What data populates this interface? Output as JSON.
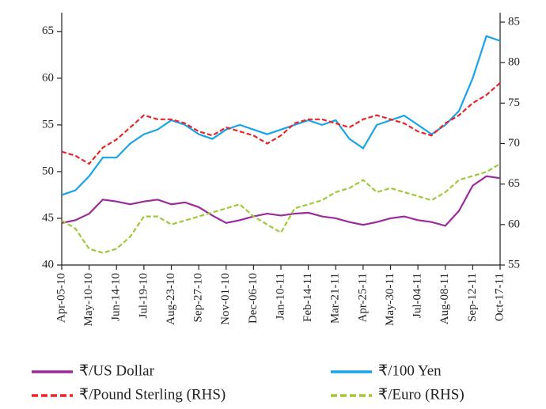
{
  "chart_data": {
    "type": "line",
    "categories": [
      "Apr-05-10",
      null,
      "May-10-10",
      null,
      "Jun-14-10",
      null,
      "Jul-19-10",
      null,
      "Aug-23-10",
      null,
      "Sep-27-10",
      null,
      "Nov-01-10",
      null,
      "Dec-06-10",
      null,
      "Jan-10-11",
      null,
      "Feb-14-11",
      null,
      "Mar-21-11",
      null,
      "Apr-25-11",
      null,
      "May-30-11",
      null,
      "Jul-04-11",
      null,
      "Aug-08-11",
      null,
      "Sep-12-11",
      null,
      "Oct-17-11"
    ],
    "ylim": [
      40,
      66
    ],
    "yticks": [
      40,
      45,
      50,
      55,
      60,
      65
    ],
    "y2lim": [
      55,
      85
    ],
    "y2ticks": [
      55,
      60,
      65,
      70,
      75,
      80,
      85
    ],
    "series": [
      {
        "name": "₹/US Dollar",
        "color": "#9b2a9b",
        "dash": false,
        "values": [
          44.5,
          44.8,
          45.5,
          47,
          46.8,
          46.5,
          46.8,
          47,
          46.5,
          46.7,
          46.2,
          45.3,
          44.5,
          44.8,
          45.2,
          45.5,
          45.3,
          45.5,
          45.6,
          45.2,
          45,
          44.6,
          44.3,
          44.6,
          45,
          45.2,
          44.8,
          44.6,
          44.2,
          45.8,
          48.5,
          49.5,
          49.3
        ]
      },
      {
        "name": "₹/100 Yen",
        "color": "#1aa3e8",
        "dash": false,
        "values": [
          47.5,
          48,
          49.5,
          51.5,
          51.5,
          53,
          54,
          54.5,
          55.5,
          55,
          54,
          53.5,
          54.5,
          55,
          54.5,
          54,
          54.5,
          55,
          55.5,
          55,
          55.5,
          53.5,
          52.5,
          55,
          55.5,
          56,
          55,
          54,
          55,
          56.5,
          60,
          64.5,
          64
        ]
      },
      {
        "name": "₹/Pound Sterling (RHS)",
        "color": "#e8262a",
        "dash": true,
        "axis": "y2",
        "values": [
          69,
          68.5,
          67.5,
          69.5,
          70.5,
          72,
          73.5,
          73,
          73,
          72.5,
          71.5,
          71,
          72,
          71.5,
          71,
          70,
          71,
          72.5,
          73,
          73,
          72.5,
          72,
          73,
          73.5,
          73,
          72.5,
          71.5,
          71,
          72.5,
          73.5,
          75,
          76,
          77.5
        ]
      },
      {
        "name": "₹/Euro (RHS)",
        "color": "#9ec93a",
        "dash": true,
        "axis": "y2",
        "values": [
          60.5,
          59.5,
          57,
          56.5,
          57,
          58.5,
          61,
          61,
          60,
          60.5,
          61,
          61.5,
          62,
          62.5,
          61,
          60,
          59,
          62,
          62.5,
          63,
          64,
          64.5,
          65.5,
          64,
          64.5,
          64,
          63.5,
          63,
          64,
          65.5,
          66,
          66.5,
          67.5
        ]
      }
    ]
  }
}
